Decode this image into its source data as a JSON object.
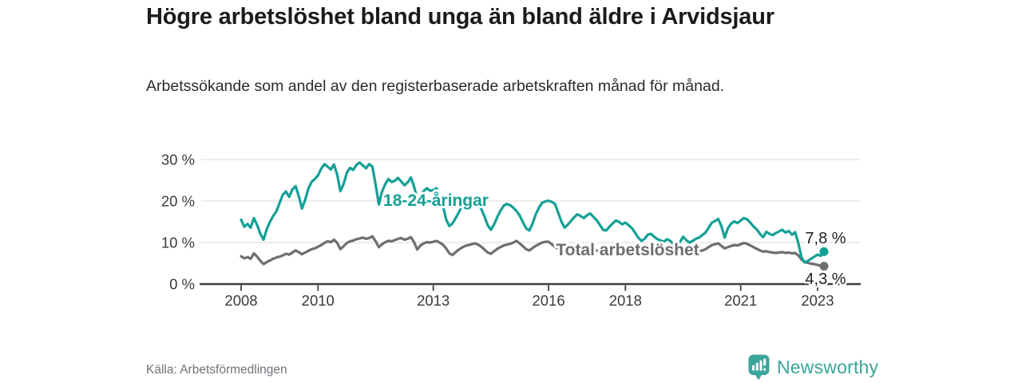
{
  "header": {
    "title": "Högre arbetslöshet bland unga än bland äldre i Arvidsjaur",
    "subtitle": "Arbetssökande som andel av den registerbaserade arbetskraften månad för månad."
  },
  "footer": {
    "source": "Källa: Arbetsförmedlingen",
    "brand": "Newsworthy"
  },
  "colors": {
    "youth_line": "#14a096",
    "total_line": "#6e6e70",
    "brand_teal": "#3ba59b",
    "grid": "#d9d9d9",
    "axis": "#3d3d3d",
    "title_text": "#1b1b1b",
    "end_label_text": "#1f1f1f"
  },
  "chart_data": {
    "type": "line",
    "title": "Högre arbetslöshet bland unga än bland äldre i Arvidsjaur",
    "xlabel": "",
    "ylabel": "",
    "grid": "horizontal",
    "legend_position": "inline-labels",
    "ylim": [
      0,
      31.5
    ],
    "x_axis": {
      "start_year": 2008,
      "start_month": 1,
      "end_year": 2023,
      "end_month": 3,
      "frequency": "monthly",
      "ticks": [
        {
          "year": 2008,
          "label": "2008"
        },
        {
          "year": 2010,
          "label": "2010"
        },
        {
          "year": 2013,
          "label": "2013"
        },
        {
          "year": 2016,
          "label": "2016"
        },
        {
          "year": 2018,
          "label": "2018"
        },
        {
          "year": 2021,
          "label": "2021"
        },
        {
          "year": 2023,
          "label": "2023"
        }
      ]
    },
    "y_axis": {
      "unit": "%",
      "ticks": [
        {
          "value": 0,
          "label": "0 %"
        },
        {
          "value": 10,
          "label": "10 %"
        },
        {
          "value": 20,
          "label": "20 %"
        },
        {
          "value": 30,
          "label": "30 %"
        }
      ]
    },
    "series": [
      {
        "name": "18-24-åringar",
        "color": "#14a096",
        "end_label": "7,8 %",
        "end_value": 7.8,
        "values": [
          15.5,
          13.8,
          14.5,
          13.6,
          15.9,
          14.2,
          12.1,
          10.7,
          13.2,
          15.0,
          16.4,
          17.5,
          19.5,
          21.5,
          22.3,
          21.0,
          22.8,
          23.6,
          21.2,
          18.2,
          20.3,
          23.0,
          24.6,
          25.3,
          26.2,
          27.8,
          28.9,
          28.3,
          27.6,
          28.8,
          26.4,
          22.4,
          24.1,
          26.8,
          28.0,
          27.5,
          28.7,
          29.3,
          28.6,
          27.9,
          28.9,
          28.3,
          23.9,
          19.2,
          22.3,
          24.1,
          25.3,
          24.6,
          24.9,
          25.6,
          24.7,
          23.8,
          24.5,
          25.7,
          23.5,
          20.5,
          21.5,
          22.4,
          23.1,
          22.5,
          22.6,
          23.1,
          21.4,
          18.9,
          15.6,
          14.0,
          14.6,
          15.9,
          17.3,
          18.8,
          19.9,
          20.6,
          20.9,
          20.2,
          19.4,
          18.1,
          16.3,
          14.2,
          13.1,
          14.4,
          16.2,
          17.7,
          18.9,
          19.3,
          19.0,
          18.4,
          17.6,
          16.5,
          14.9,
          13.4,
          12.9,
          14.6,
          16.8,
          18.4,
          19.6,
          19.9,
          20.1,
          19.8,
          19.3,
          17.2,
          15.1,
          13.6,
          14.3,
          15.2,
          16.1,
          16.8,
          16.4,
          15.9,
          16.6,
          17.0,
          16.2,
          15.4,
          14.3,
          13.1,
          12.9,
          13.8,
          14.6,
          15.3,
          15.0,
          14.4,
          14.8,
          14.2,
          13.5,
          12.4,
          11.2,
          10.4,
          10.9,
          11.9,
          12.1,
          11.4,
          10.8,
          10.5,
          10.2,
          10.8,
          10.4,
          9.6,
          9.3,
          10.1,
          11.4,
          10.6,
          10.0,
          10.4,
          10.9,
          11.2,
          11.8,
          12.4,
          13.6,
          14.8,
          15.2,
          15.7,
          13.9,
          11.2,
          13.4,
          14.6,
          15.1,
          14.7,
          15.3,
          15.9,
          15.6,
          14.8,
          13.9,
          13.2,
          12.1,
          11.3,
          12.6,
          12.1,
          11.8,
          12.3,
          12.7,
          13.1,
          12.4,
          12.8,
          11.9,
          12.5,
          9.8,
          6.4,
          5.2,
          5.6,
          6.1,
          6.6,
          7.1,
          6.8,
          7.8
        ]
      },
      {
        "name": "Total arbetslöshet",
        "color": "#6e6e70",
        "end_label": "4,3 %",
        "end_value": 4.3,
        "values": [
          6.7,
          6.2,
          6.5,
          6.1,
          7.4,
          6.6,
          5.6,
          4.8,
          5.3,
          5.7,
          6.1,
          6.4,
          6.6,
          6.9,
          7.3,
          7.1,
          7.6,
          8.1,
          7.7,
          7.2,
          7.6,
          8.0,
          8.4,
          8.6,
          9.0,
          9.4,
          9.9,
          10.3,
          10.1,
          10.7,
          9.9,
          8.4,
          9.1,
          9.9,
          10.3,
          10.5,
          10.8,
          11.0,
          11.2,
          10.9,
          11.1,
          11.5,
          10.3,
          8.9,
          9.6,
          10.1,
          10.4,
          10.3,
          10.6,
          10.9,
          11.1,
          10.7,
          10.9,
          11.3,
          10.1,
          8.3,
          9.3,
          9.8,
          10.1,
          10.0,
          10.2,
          10.4,
          10.0,
          9.5,
          8.6,
          7.4,
          7.0,
          7.7,
          8.3,
          8.8,
          9.2,
          9.4,
          9.6,
          9.8,
          9.5,
          9.0,
          8.3,
          7.6,
          7.3,
          7.9,
          8.5,
          8.9,
          9.3,
          9.5,
          9.7,
          10.0,
          10.4,
          9.8,
          9.1,
          8.4,
          8.1,
          8.7,
          9.2,
          9.6,
          10.0,
          10.2,
          10.2,
          9.6,
          9.0,
          8.5,
          7.9,
          7.5,
          7.8,
          8.2,
          8.5,
          8.7,
          8.6,
          8.4,
          8.6,
          8.8,
          8.5,
          8.1,
          7.7,
          7.4,
          7.6,
          8.0,
          8.3,
          8.5,
          8.4,
          8.2,
          8.4,
          8.3,
          8.0,
          7.7,
          7.3,
          7.0,
          7.2,
          7.6,
          7.8,
          7.7,
          7.5,
          7.4,
          7.5,
          7.7,
          7.5,
          7.2,
          6.9,
          7.1,
          7.6,
          7.3,
          7.1,
          7.3,
          7.6,
          7.8,
          8.1,
          8.4,
          8.9,
          9.4,
          9.6,
          9.8,
          9.2,
          8.6,
          8.9,
          9.2,
          9.4,
          9.3,
          9.6,
          9.9,
          9.7,
          9.3,
          8.9,
          8.5,
          8.1,
          7.8,
          7.9,
          7.7,
          7.6,
          7.5,
          7.6,
          7.7,
          7.5,
          7.6,
          7.4,
          7.5,
          6.9,
          5.9,
          5.3,
          5.1,
          4.9,
          4.8,
          4.6,
          4.4,
          4.3
        ]
      }
    ]
  }
}
